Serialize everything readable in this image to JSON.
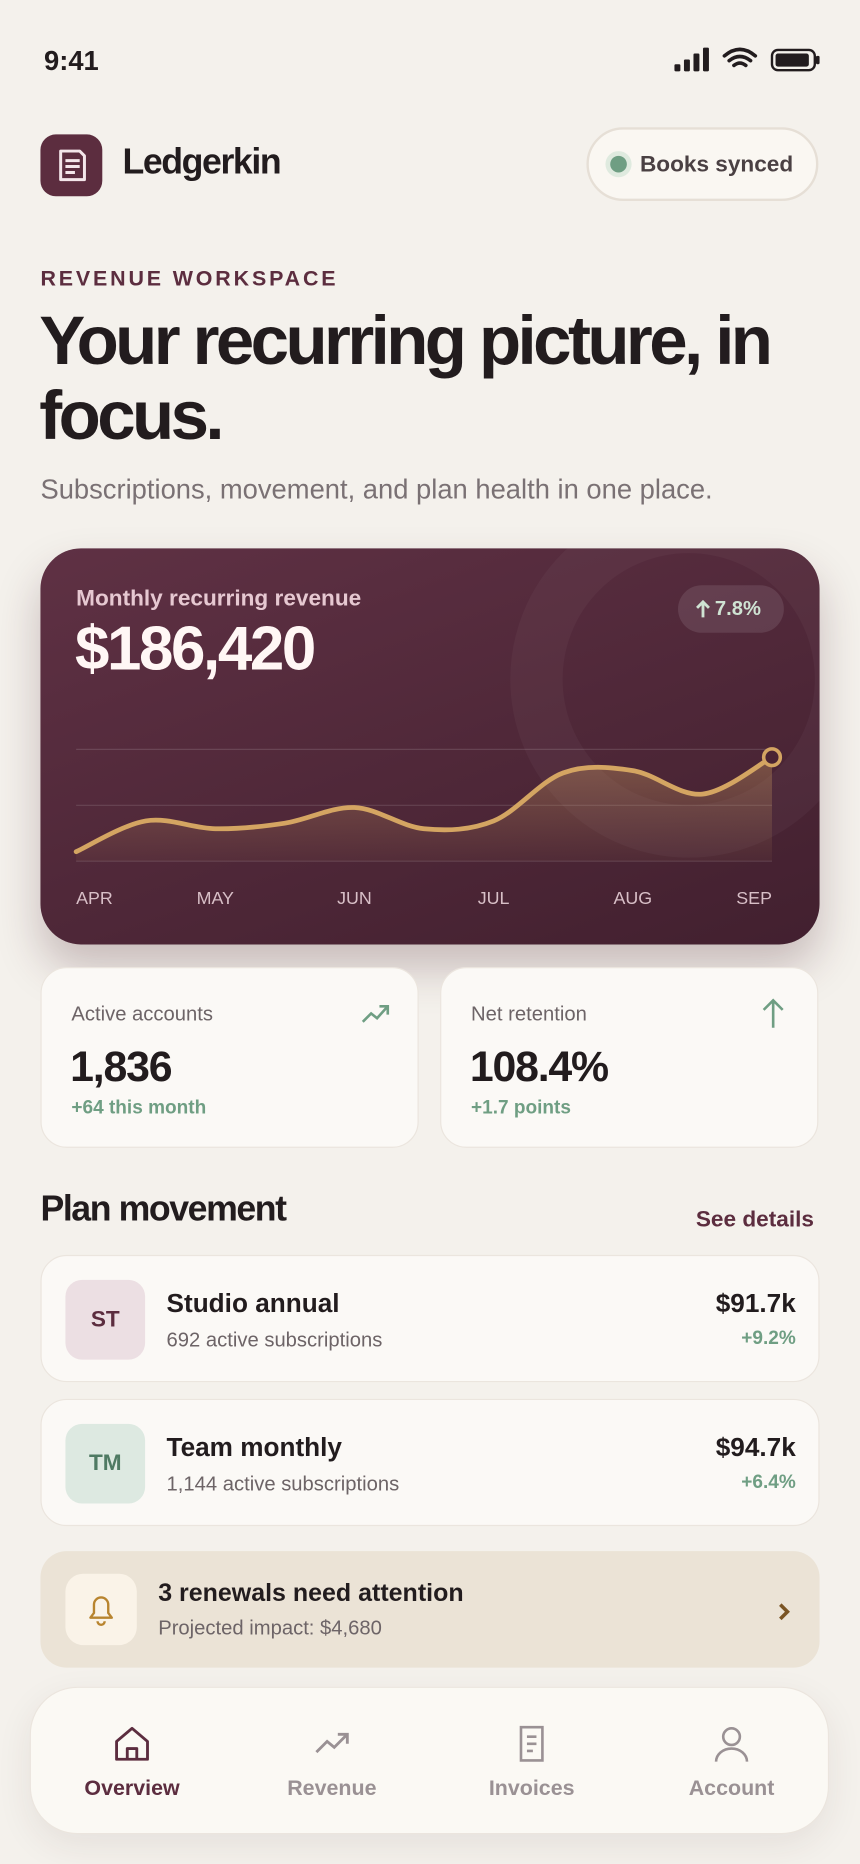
{
  "status_bar": {
    "time": "9:41"
  },
  "header": {
    "app_name": "Ledgerkin",
    "sync_status": "Books synced"
  },
  "hero": {
    "eyebrow": "REVENUE WORKSPACE",
    "title": "Your recurring picture, in focus.",
    "subtitle": "Subscriptions, movement, and plan health in one place."
  },
  "mrr_card": {
    "label": "Monthly recurring revenue",
    "value": "$186,420",
    "change": "7.8%",
    "chart": {
      "type": "line",
      "categories": [
        "APR",
        null,
        "MAY",
        null,
        "JUN",
        null,
        "JUL",
        null,
        "AUG",
        null,
        "SEP"
      ],
      "values": [
        8.5,
        36,
        29,
        34,
        48,
        29,
        36,
        79,
        81,
        60,
        93
      ],
      "ylim": [
        0,
        100
      ],
      "color": "#d4a562"
    }
  },
  "stats": [
    {
      "label": "Active accounts",
      "value": "1,836",
      "delta": "+64 this month"
    },
    {
      "label": "Net retention",
      "value": "108.4%",
      "delta": "+1.7 points"
    }
  ],
  "plan_movement": {
    "title": "Plan movement",
    "link": "See details",
    "plans": [
      {
        "initials": "ST",
        "name": "Studio annual",
        "subscriptions": "692 active subscriptions",
        "revenue": "$91.7k",
        "change": "+9.2%"
      },
      {
        "initials": "TM",
        "name": "Team monthly",
        "subscriptions": "1,144 active subscriptions",
        "revenue": "$94.7k",
        "change": "+6.4%"
      }
    ]
  },
  "alert": {
    "title": "3 renewals need attention",
    "detail": "Projected impact: $4,680"
  },
  "nav": [
    {
      "label": "Overview",
      "active": true
    },
    {
      "label": "Revenue",
      "active": false
    },
    {
      "label": "Invoices",
      "active": false
    },
    {
      "label": "Account",
      "active": false
    }
  ]
}
